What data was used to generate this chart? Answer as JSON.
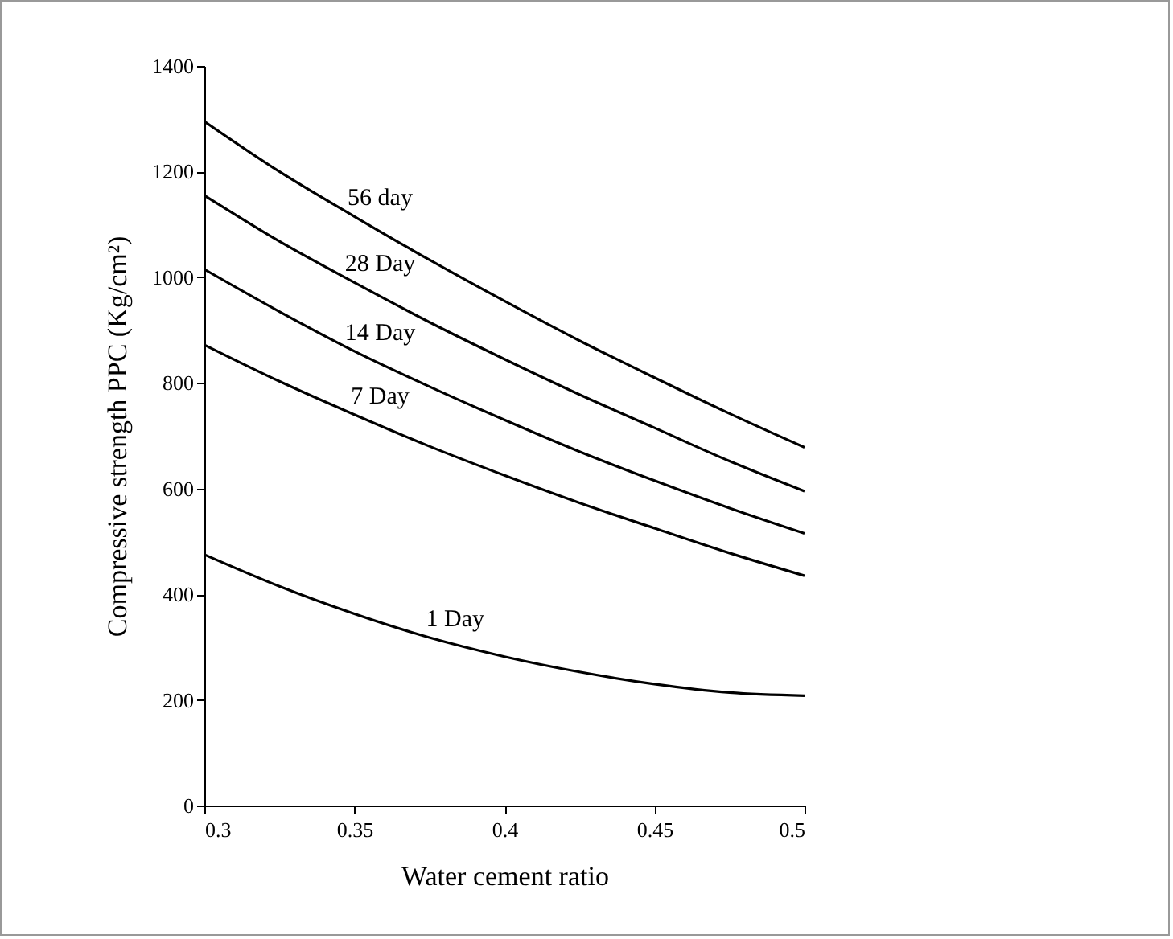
{
  "chart_data": {
    "type": "line",
    "xlabel": "Water cement ratio",
    "ylabel": "Compressive strength PPC (Kg/cm²)",
    "x": [
      0.3,
      0.325,
      0.35,
      0.375,
      0.4,
      0.425,
      0.45,
      0.475,
      0.5
    ],
    "xlim": [
      0.3,
      0.5
    ],
    "xticks": [
      0.3,
      0.35,
      0.4,
      0.45,
      0.5
    ],
    "ylim": [
      0,
      1400
    ],
    "yticks": [
      0,
      200,
      400,
      600,
      800,
      1000,
      1200,
      1400
    ],
    "grid": false,
    "legend": false,
    "marker": "none",
    "line_style": "solid",
    "series": [
      {
        "name": "56 day",
        "color": "#000000",
        "values": [
          1295,
          1200,
          1115,
          1033,
          955,
          880,
          810,
          742,
          678
        ]
      },
      {
        "name": "28 Day",
        "color": "#000000",
        "values": [
          1155,
          1068,
          990,
          915,
          845,
          778,
          715,
          652,
          595
        ]
      },
      {
        "name": "14 Day",
        "color": "#000000",
        "values": [
          1015,
          935,
          860,
          793,
          730,
          670,
          615,
          563,
          515
        ]
      },
      {
        "name": "7 Day",
        "color": "#000000",
        "values": [
          872,
          803,
          740,
          680,
          625,
          573,
          525,
          478,
          435
        ]
      },
      {
        "name": "1 Day",
        "color": "#000000",
        "values": [
          475,
          415,
          363,
          318,
          282,
          253,
          230,
          214,
          208
        ]
      }
    ]
  }
}
